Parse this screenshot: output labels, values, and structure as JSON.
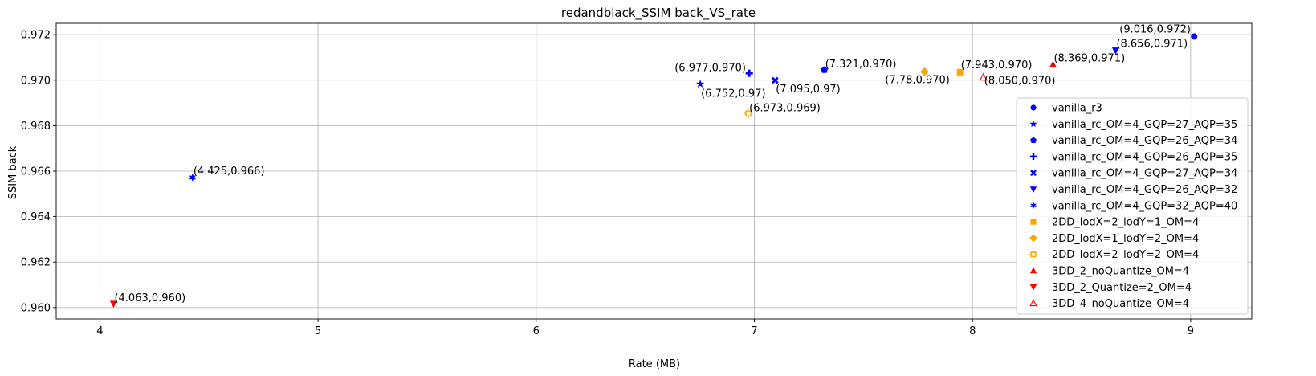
{
  "chart_data": {
    "type": "scatter",
    "title": "redandblack_SSIM back_VS_rate",
    "xlabel": "Rate (MB)",
    "ylabel": "SSIM back",
    "xlim": [
      3.8,
      9.28
    ],
    "ylim": [
      0.9595,
      0.9725
    ],
    "grid": true,
    "legend_position": "lower-right",
    "xticks": [
      4,
      5,
      6,
      7,
      8,
      9
    ],
    "xtick_labels": [
      "4",
      "5",
      "6",
      "7",
      "8",
      "9"
    ],
    "yticks": [
      0.96,
      0.962,
      0.964,
      0.966,
      0.968,
      0.97,
      0.972
    ],
    "ytick_labels": [
      "0.960",
      "0.962",
      "0.964",
      "0.966",
      "0.968",
      "0.970",
      "0.972"
    ],
    "series": [
      {
        "name": "vanilla_r3",
        "marker": "circle",
        "color": "#0000ff",
        "x": 9.016,
        "y": 0.97192,
        "label": "(9.016,0.972)"
      },
      {
        "name": "vanilla_rc_OM=4_GQP=27_AQP=35",
        "marker": "star",
        "color": "#0000ff",
        "x": 6.752,
        "y": 0.96983,
        "label": "(6.752,0.97)"
      },
      {
        "name": "vanilla_rc_OM=4_GQP=26_AQP=34",
        "marker": "pentagon",
        "color": "#0000ff",
        "x": 7.321,
        "y": 0.97045,
        "label": "(7.321,0.970)"
      },
      {
        "name": "vanilla_rc_OM=4_GQP=26_AQP=35",
        "marker": "plus",
        "color": "#0000ff",
        "x": 6.977,
        "y": 0.9703,
        "label": "(6.977,0.970)"
      },
      {
        "name": "vanilla_rc_OM=4_GQP=27_AQP=34",
        "marker": "x",
        "color": "#0000ff",
        "x": 7.095,
        "y": 0.96999,
        "label": "(7.095,0.97)"
      },
      {
        "name": "vanilla_rc_OM=4_GQP=26_AQP=32",
        "marker": "triangle-down",
        "color": "#0000ff",
        "x": 8.656,
        "y": 0.97131,
        "label": "(8.656,0.971)"
      },
      {
        "name": "vanilla_rc_OM=4_GQP=32_AQP=40",
        "marker": "asterisk",
        "color": "#0000ff",
        "x": 4.425,
        "y": 0.96572,
        "label": "(4.425,0.966)"
      },
      {
        "name": "2DD_lodX=2_lodY=1_OM=4",
        "marker": "square",
        "color": "#ffa500",
        "x": 7.943,
        "y": 0.97035,
        "label": "(7.943,0.970)"
      },
      {
        "name": "2DD_lodX=1_lodY=2_OM=4",
        "marker": "diamond",
        "color": "#ffa500",
        "x": 7.78,
        "y": 0.97037,
        "label": "(7.78,0.970)"
      },
      {
        "name": "2DD_lodX=2_lodY=2_OM=4",
        "marker": "octagon-open",
        "color": "#ffa500",
        "x": 6.973,
        "y": 0.96853,
        "label": "(6.973,0.969)"
      },
      {
        "name": "3DD_2_noQuantize_OM=4",
        "marker": "triangle-up",
        "color": "#ff0000",
        "x": 8.369,
        "y": 0.97068,
        "label": "(8.369,0.971)"
      },
      {
        "name": "3DD_2_Quantize=2_OM=4",
        "marker": "triangle-down",
        "color": "#ff0000",
        "x": 4.063,
        "y": 0.96017,
        "label": "(4.063,0.960)"
      },
      {
        "name": "3DD_4_noQuantize_OM=4",
        "marker": "triangle-up-open",
        "color": "#ff0000",
        "x": 8.05,
        "y": 0.97012,
        "label": "(8.050,0.970)"
      }
    ]
  }
}
